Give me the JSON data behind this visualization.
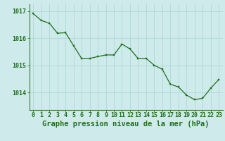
{
  "x": [
    0,
    1,
    2,
    3,
    4,
    5,
    6,
    7,
    8,
    9,
    10,
    11,
    12,
    13,
    14,
    15,
    16,
    17,
    18,
    19,
    20,
    21,
    22,
    23
  ],
  "y": [
    1016.9,
    1016.65,
    1016.55,
    1016.18,
    1016.2,
    1015.72,
    1015.25,
    1015.25,
    1015.32,
    1015.38,
    1015.38,
    1015.78,
    1015.6,
    1015.25,
    1015.25,
    1015.0,
    1014.85,
    1014.3,
    1014.2,
    1013.9,
    1013.73,
    1013.78,
    1014.15,
    1014.47
  ],
  "line_color": "#1f6e1f",
  "marker_color": "#1f6e1f",
  "bg_color": "#ceeaea",
  "grid_color": "#b0d8d8",
  "label_color": "#1f6e1f",
  "ylabel_ticks": [
    1014,
    1015,
    1016,
    1017
  ],
  "ylim": [
    1013.35,
    1017.25
  ],
  "xlim": [
    -0.5,
    23.5
  ],
  "xlabel": "Graphe pression niveau de la mer (hPa)",
  "xlabel_fontsize": 7.5,
  "tick_fontsize": 6.0
}
